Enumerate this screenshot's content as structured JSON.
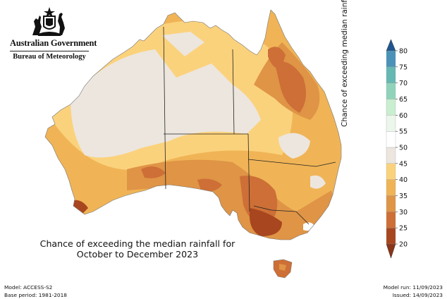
{
  "branding": {
    "government": "Australian Government",
    "agency": "Bureau of Meteorology",
    "crest_icon": "coat-of-arms-icon"
  },
  "map": {
    "title_line1": "Chance of exceeding the median rainfall for",
    "title_line2": "October to December 2023",
    "palette": {
      "20": "#a8461f",
      "25": "#cd6f36",
      "30": "#df9446",
      "35": "#f0b456",
      "40": "#fbd27c",
      "45": "#ece6de",
      "50": "#ffffff",
      "55": "#ebf7ea",
      "60": "#c9eed0",
      "65": "#8fd4ba",
      "70": "#66b8b2",
      "75": "#4b92b8",
      "80": "#2b6ba3"
    }
  },
  "legend": {
    "title": "Chance of exceeding median rainfall (%)",
    "ticks": [
      "20",
      "25",
      "30",
      "35",
      "40",
      "45",
      "50",
      "55",
      "60",
      "65",
      "70",
      "75",
      "80"
    ],
    "colors": [
      "#a8461f",
      "#cd6f36",
      "#df9446",
      "#f0b456",
      "#fbd27c",
      "#ece6de",
      "#ffffff",
      "#ebf7ea",
      "#c9eed0",
      "#8fd4ba",
      "#66b8b2",
      "#4b92b8",
      "#2b6ba3"
    ]
  },
  "footer": {
    "model": "Model: ACCESS-S2",
    "base_period": "Base period: 1981-2018",
    "model_run": "Model run: 11/09/2023",
    "issued": "Issued: 14/09/2023"
  }
}
